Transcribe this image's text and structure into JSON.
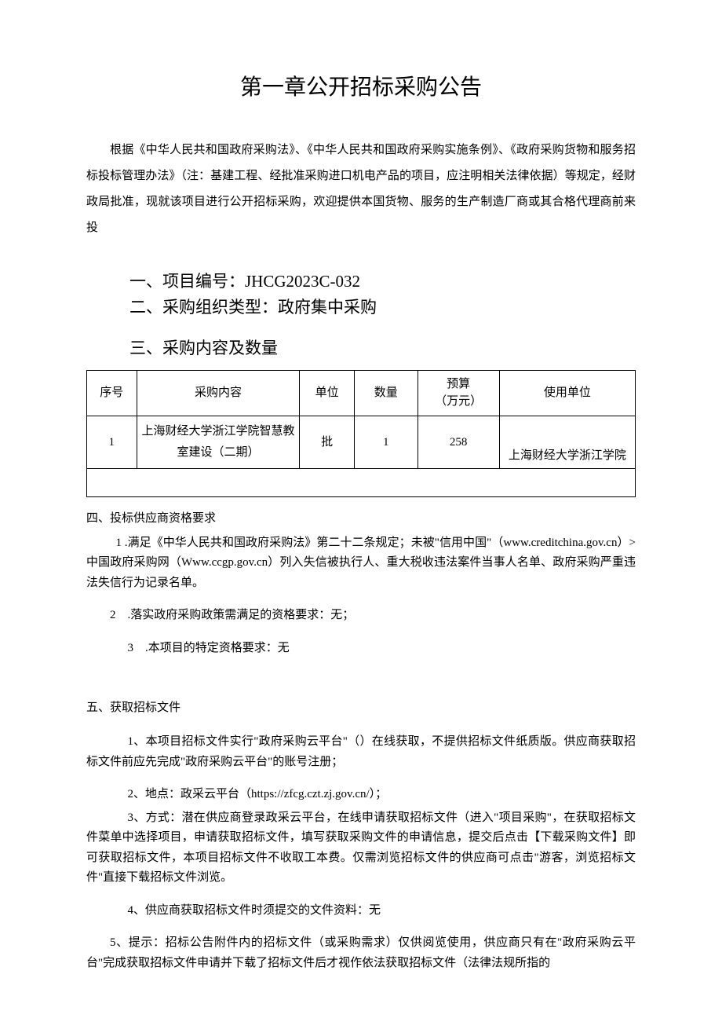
{
  "title": "第一章公开招标采购公告",
  "intro": "根据《中华人民共和国政府采购法》、《中华人民共和国政府采购实施条例》、《政府采购货物和服务招标投标管理办法》（注：基建工程、经批准采购进口机电产品的项目，应注明相关法律依据）等规定，经财政局批准，现就该项目进行公开招标采购，欢迎提供本国货物、服务的生产制造厂商或其合格代理商前来投",
  "section1": "一、项目编号：JHCG2023C-032",
  "section2": "二、采购组织类型：政府集中采购",
  "section3": "三、采购内容及数量",
  "table": {
    "headers": {
      "seq": "序号",
      "content": "采购内容",
      "unit": "单位",
      "qty": "数量",
      "budget_line1": "预算",
      "budget_line2": "（万元）",
      "dept": "使用单位"
    },
    "rows": [
      {
        "seq": "1",
        "content_line1": "上海财经大学浙江学院智慧教",
        "content_line2": "室建设（二期）",
        "unit": "批",
        "qty": "1",
        "budget": "258",
        "dept": "上海财经大学浙江学院"
      }
    ]
  },
  "section4": {
    "heading": "四、投标供应商资格要求",
    "item1": "1 .满足《中华人民共和国政府采购法》第二十二条规定；未被\"信用中国\"（www.creditchina.gov.cn）>中国政府采购网（Www.ccgp.gov.cn）列入失信被执行人、重大税收违法案件当事人名单、政府采购严重违法失信行为记录名单。",
    "item2": "2　.落实政府采购政策需满足的资格要求：无；",
    "item3": "3　.本项目的特定资格要求：无"
  },
  "section5": {
    "heading": "五、获取招标文件",
    "item1": "1、本项目招标文件实行\"政府采购云平台\"（）在线获取，不提供招标文件纸质版。供应商获取招标文件前应先完成\"政府采购云平台\"的账号注册；",
    "item2": "2、地点：政采云平台（https://zfcg.czt.zj.gov.cn/）；",
    "item3": "3、方式：潜在供应商登录政采云平台，在线申请获取招标文件（进入\"项目采购\"，在获取招标文件菜单中选择项目，申请获取招标文件，填写获取采购文件的申请信息，提交后点击【下载采购文件】即可获取招标文件，本项目招标文件不收取工本费。仅需浏览招标文件的供应商可点击\"游客，浏览招标文件\"直接下载招标文件浏览。",
    "item4": "4、供应商获取招标文件时须提交的文件资料：无",
    "item5": "5、提示：招标公告附件内的招标文件（或采购需求）仅供阅览使用，供应商只有在\"政府采购云平台\"完成获取招标文件申请并下载了招标文件后才视作依法获取招标文件（法律法规所指的"
  }
}
